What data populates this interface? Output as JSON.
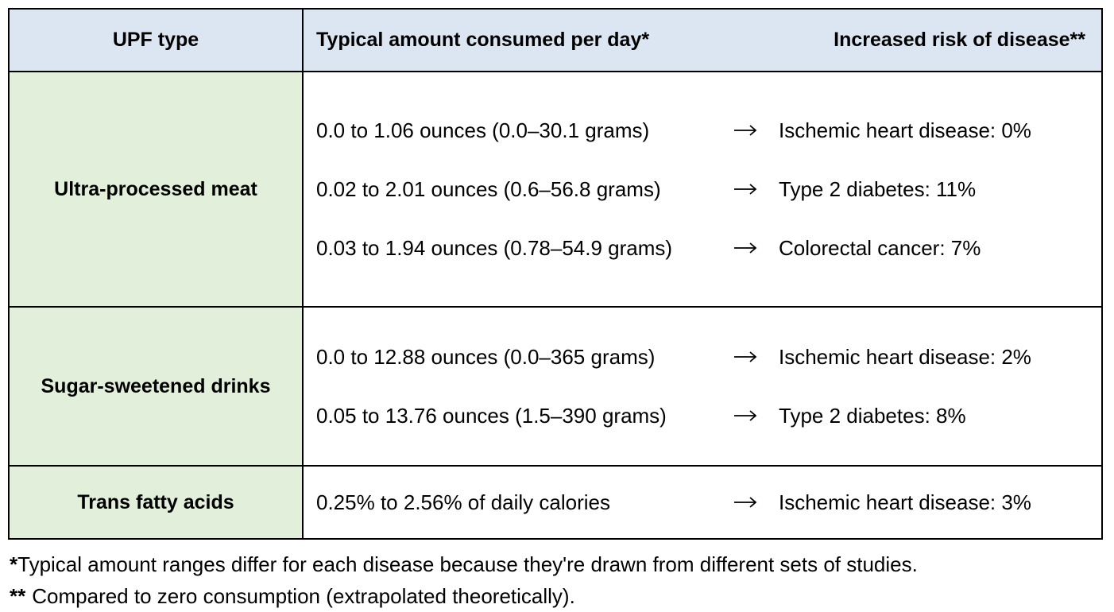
{
  "table": {
    "header": [
      "UPF type",
      "Typical amount consumed per day*",
      "Increased risk of disease**"
    ],
    "rows": [
      {
        "type": "Ultra-processed meat",
        "entries": [
          {
            "amount": "0.0 to 1.06 ounces (0.0–30.1 grams)",
            "risk": "Ischemic heart disease: 0%"
          },
          {
            "amount": "0.02 to 2.01 ounces (0.6–56.8 grams)",
            "risk": "Type 2 diabetes: 11%"
          },
          {
            "amount": "0.03 to 1.94 ounces (0.78–54.9 grams)",
            "risk": "Colorectal cancer: 7%"
          }
        ]
      },
      {
        "type": "Sugar-sweetened drinks",
        "entries": [
          {
            "amount": "0.0 to 12.88 ounces (0.0–365 grams)",
            "risk": "Ischemic heart disease: 2%"
          },
          {
            "amount": "0.05 to 13.76 ounces (1.5–390 grams)",
            "risk": "Type 2 diabetes: 8%"
          }
        ]
      },
      {
        "type": "Trans fatty acids",
        "entries": [
          {
            "amount": "0.25% to 2.56% of daily calories",
            "risk": "Ischemic heart disease: 3%"
          }
        ]
      }
    ]
  },
  "footnotes": [
    {
      "marker": "*",
      "text": "Typical amount ranges differ for each disease because they're drawn from different sets of studies."
    },
    {
      "marker": "**",
      "text": "Compared to zero consumption (extrapolated theoretically)."
    }
  ]
}
